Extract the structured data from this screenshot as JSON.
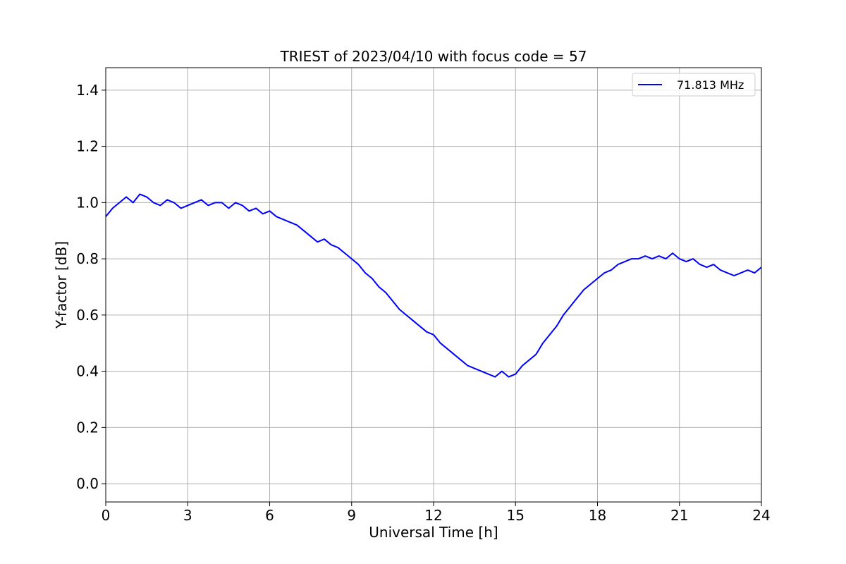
{
  "chart_data": {
    "type": "line",
    "title": "TRIEST of 2023/04/10 with focus code = 57",
    "xlabel": "Universal Time [h]",
    "ylabel": "Y-factor [dB]",
    "xlim": [
      0,
      24
    ],
    "ylim": [
      -0.065,
      1.48
    ],
    "xticks": [
      0,
      3,
      6,
      9,
      12,
      15,
      18,
      21,
      24
    ],
    "yticks": [
      0.0,
      0.2,
      0.4,
      0.6,
      0.8,
      1.0,
      1.2,
      1.4
    ],
    "xtick_labels": [
      "0",
      "3",
      "6",
      "9",
      "12",
      "15",
      "18",
      "21",
      "24"
    ],
    "ytick_labels": [
      "0.0",
      "0.2",
      "0.4",
      "0.6",
      "0.8",
      "1.0",
      "1.2",
      "1.4"
    ],
    "grid": true,
    "legend_position": "top-right",
    "series": [
      {
        "name": "71.813 MHz",
        "color": "#0000ff",
        "x": [
          0,
          0.25,
          0.5,
          0.75,
          1,
          1.25,
          1.5,
          1.75,
          2,
          2.25,
          2.5,
          2.75,
          3,
          3.25,
          3.5,
          3.75,
          4,
          4.25,
          4.5,
          4.75,
          5,
          5.25,
          5.5,
          5.75,
          6,
          6.25,
          6.5,
          6.75,
          7,
          7.25,
          7.5,
          7.75,
          8,
          8.25,
          8.5,
          8.75,
          9,
          9.25,
          9.5,
          9.75,
          10,
          10.25,
          10.5,
          10.75,
          11,
          11.25,
          11.5,
          11.75,
          12,
          12.25,
          12.5,
          12.75,
          13,
          13.25,
          13.5,
          13.75,
          14,
          14.25,
          14.5,
          14.75,
          15,
          15.25,
          15.5,
          15.75,
          16,
          16.25,
          16.5,
          16.75,
          17,
          17.25,
          17.5,
          17.75,
          18,
          18.25,
          18.5,
          18.75,
          19,
          19.25,
          19.5,
          19.75,
          20,
          20.25,
          20.5,
          20.75,
          21,
          21.25,
          21.5,
          21.75,
          22,
          22.25,
          22.5,
          22.75,
          23,
          23.25,
          23.5,
          23.75,
          24
        ],
        "y": [
          0.95,
          0.98,
          1.0,
          1.02,
          1.0,
          1.03,
          1.02,
          1.0,
          0.99,
          1.01,
          1.0,
          0.98,
          0.99,
          1.0,
          1.01,
          0.99,
          1.0,
          1.0,
          0.98,
          1.0,
          0.99,
          0.97,
          0.98,
          0.96,
          0.97,
          0.95,
          0.94,
          0.93,
          0.92,
          0.9,
          0.88,
          0.86,
          0.87,
          0.85,
          0.84,
          0.82,
          0.8,
          0.78,
          0.75,
          0.73,
          0.7,
          0.68,
          0.65,
          0.62,
          0.6,
          0.58,
          0.56,
          0.54,
          0.53,
          0.5,
          0.48,
          0.46,
          0.44,
          0.42,
          0.41,
          0.4,
          0.39,
          0.38,
          0.4,
          0.38,
          0.39,
          0.42,
          0.44,
          0.46,
          0.5,
          0.53,
          0.56,
          0.6,
          0.63,
          0.66,
          0.69,
          0.71,
          0.73,
          0.75,
          0.76,
          0.78,
          0.79,
          0.8,
          0.8,
          0.81,
          0.8,
          0.81,
          0.8,
          0.82,
          0.8,
          0.79,
          0.8,
          0.78,
          0.77,
          0.78,
          0.76,
          0.75,
          0.74,
          0.75,
          0.76,
          0.75,
          0.77
        ]
      }
    ]
  }
}
